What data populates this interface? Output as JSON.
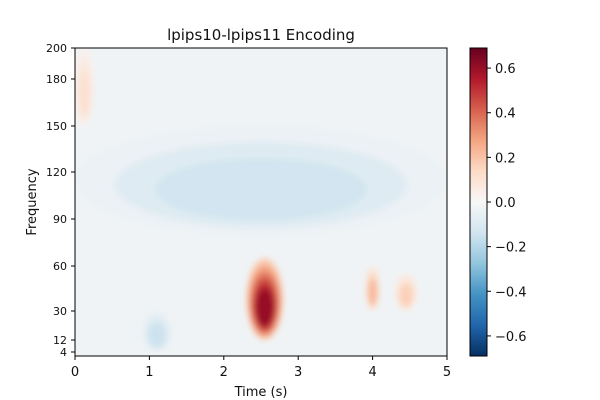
{
  "chart_data": {
    "type": "heatmap",
    "title": "lpips10-lpips11 Encoding",
    "xlabel": "Time (s)",
    "ylabel": "Frequency",
    "xlim": [
      0,
      5
    ],
    "ylim": [
      4,
      200
    ],
    "x_ticks": [
      0,
      1,
      2,
      3,
      4,
      5
    ],
    "x_tick_labels": [
      "0",
      "1",
      "2",
      "3",
      "4",
      "5"
    ],
    "y_ticks": [
      4,
      12,
      30,
      60,
      90,
      120,
      150,
      180,
      200
    ],
    "y_tick_labels": [
      "4",
      "12",
      "30",
      "60",
      "90",
      "120",
      "150",
      "180",
      "200"
    ],
    "y_scale": "nonlinear (frequency bins)",
    "colormap": "RdBu_r",
    "colorbar": {
      "range": [
        -0.69,
        0.69
      ],
      "ticks": [
        -0.6,
        -0.4,
        -0.2,
        0.0,
        0.2,
        0.4,
        0.6
      ],
      "tick_labels": [
        "−0.6",
        "−0.4",
        "−0.2",
        "0.0",
        "0.2",
        "0.4",
        "0.6"
      ]
    },
    "regions": [
      {
        "description": "strong positive peak",
        "t_range": [
          2.3,
          2.8
        ],
        "freq_range": [
          12,
          65
        ],
        "peak_value": 0.69
      },
      {
        "description": "weak positive",
        "t_range": [
          0.0,
          0.25
        ],
        "freq_range": [
          150,
          200
        ],
        "peak_value": 0.15
      },
      {
        "description": "weak positive",
        "t_range": [
          3.9,
          4.1
        ],
        "freq_range": [
          30,
          60
        ],
        "peak_value": 0.3
      },
      {
        "description": "weak positive",
        "t_range": [
          4.3,
          4.6
        ],
        "freq_range": [
          30,
          55
        ],
        "peak_value": 0.22
      },
      {
        "description": "weak negative band",
        "t_range": [
          0.0,
          5.0
        ],
        "freq_range": [
          80,
          150
        ],
        "peak_value": -0.18
      },
      {
        "description": "weak negative",
        "t_range": [
          0.9,
          1.3
        ],
        "freq_range": [
          4,
          30
        ],
        "peak_value": -0.2
      }
    ]
  }
}
